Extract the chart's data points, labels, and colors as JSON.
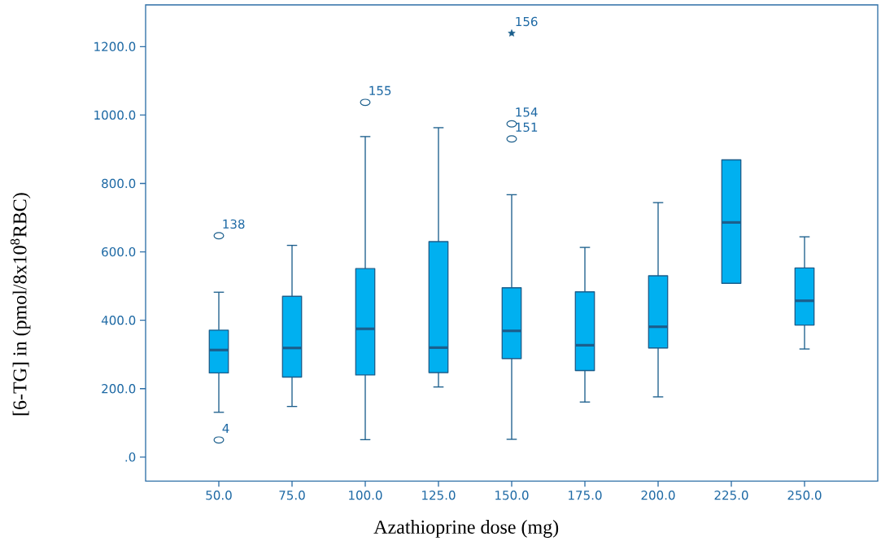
{
  "chart_data": {
    "type": "box",
    "xlabel": "Azathioprine dose (mg)",
    "ylabel": "[6-TG] in (pmol/8x10$^{8}$RBC)",
    "categories": [
      "50.0",
      "75.0",
      "100.0",
      "125.0",
      "150.0",
      "175.0",
      "200.0",
      "225.0",
      "250.0"
    ],
    "ylim": [
      -70,
      1322
    ],
    "yticks": [
      {
        "value": 0,
        "label": ".0"
      },
      {
        "value": 200,
        "label": "200.0"
      },
      {
        "value": 400,
        "label": "400.0"
      },
      {
        "value": 600,
        "label": "600.0"
      },
      {
        "value": 800,
        "label": "800.0"
      },
      {
        "value": 1000,
        "label": "1000.0"
      },
      {
        "value": 1200,
        "label": "1200.0"
      }
    ],
    "series": [
      {
        "type": "box",
        "color": "#00b0f0",
        "boxes": [
          {
            "low": 131,
            "q1": 246,
            "median": 313,
            "q3": 371,
            "high": 482
          },
          {
            "low": 148,
            "q1": 234,
            "median": 319,
            "q3": 470,
            "high": 619
          },
          {
            "low": 51,
            "q1": 240,
            "median": 375,
            "q3": 551,
            "high": 937
          },
          {
            "low": 205,
            "q1": 247,
            "median": 320,
            "q3": 630,
            "high": 963
          },
          {
            "low": 52,
            "q1": 288,
            "median": 369,
            "q3": 495,
            "high": 767
          },
          {
            "low": 161,
            "q1": 253,
            "median": 327,
            "q3": 483,
            "high": 613
          },
          {
            "low": 176,
            "q1": 319,
            "median": 381,
            "q3": 530,
            "high": 744
          },
          {
            "low": 508,
            "q1": 508,
            "median": 686,
            "q3": 869,
            "high": 869
          },
          {
            "low": 316,
            "q1": 386,
            "median": 457,
            "q3": 553,
            "high": 644
          }
        ]
      },
      {
        "type": "scatter",
        "color": "#1b5e8c",
        "marker": "circle",
        "x": [
          "50.0",
          "50.0",
          "100.0",
          "150.0",
          "150.0"
        ],
        "values": [
          647,
          50,
          1037,
          974,
          930
        ]
      },
      {
        "type": "scatter",
        "color": "#1b5e8c",
        "marker": "star",
        "x": [
          "150.0"
        ],
        "values": [
          1239
        ]
      }
    ],
    "annotations": [
      {
        "text": "138",
        "x": "50.0",
        "y": 647
      },
      {
        "text": "4",
        "x": "50.0",
        "y": 50
      },
      {
        "text": "155",
        "x": "100.0",
        "y": 1037
      },
      {
        "text": "156",
        "x": "150.0",
        "y": 1239
      },
      {
        "text": "154",
        "x": "150.0",
        "y": 974
      },
      {
        "text": "151",
        "x": "150.0",
        "y": 930
      }
    ]
  }
}
